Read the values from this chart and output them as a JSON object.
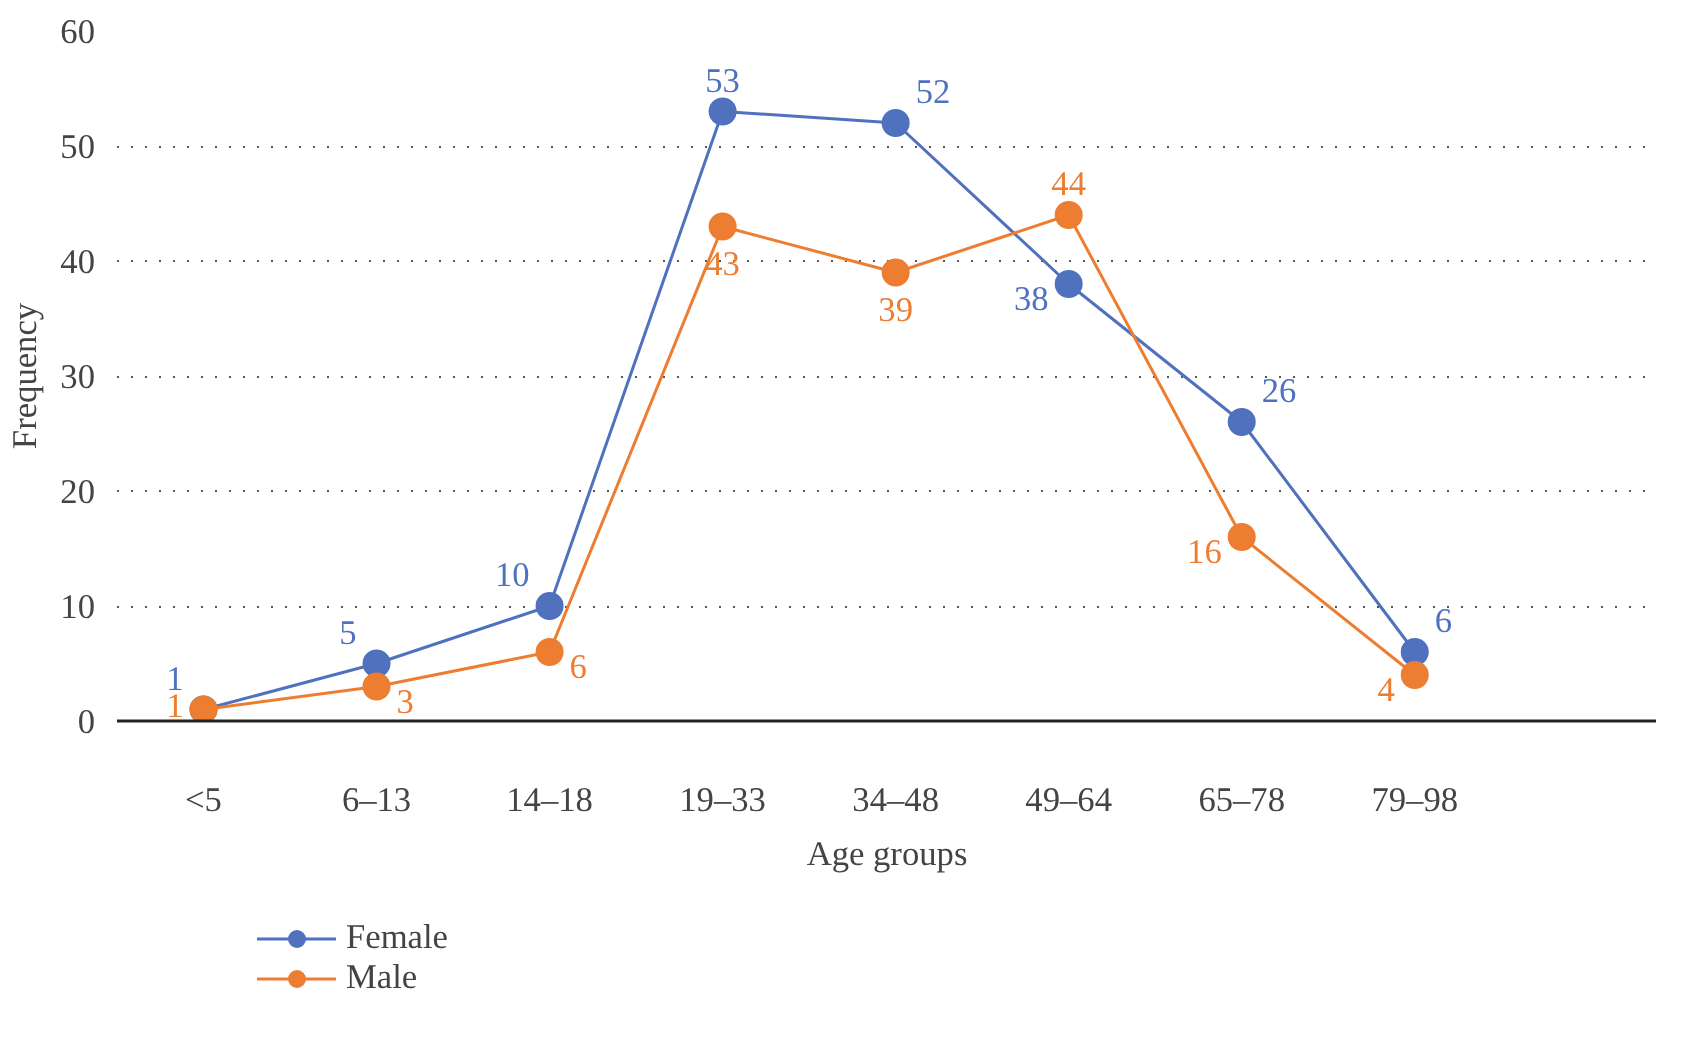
{
  "chart_data": {
    "type": "line",
    "xlabel": "Age groups",
    "ylabel": "Frequency",
    "categories": [
      "<5",
      "6–13",
      "14–18",
      "19–33",
      "34–48",
      "49–64",
      "65–78",
      "79–98"
    ],
    "series": [
      {
        "name": "Female",
        "color": "#4f71be",
        "values": [
          1,
          5,
          10,
          53,
          52,
          38,
          26,
          6
        ]
      },
      {
        "name": "Male",
        "color": "#ed7d31",
        "values": [
          1,
          3,
          6,
          43,
          39,
          44,
          16,
          4
        ]
      }
    ],
    "ylim": [
      0,
      60
    ],
    "yticks": [
      0,
      10,
      20,
      30,
      40,
      50,
      60
    ],
    "grid": "y",
    "legend": "bottom left",
    "marker": "circle",
    "line_style": "solid",
    "data_labels": true
  }
}
